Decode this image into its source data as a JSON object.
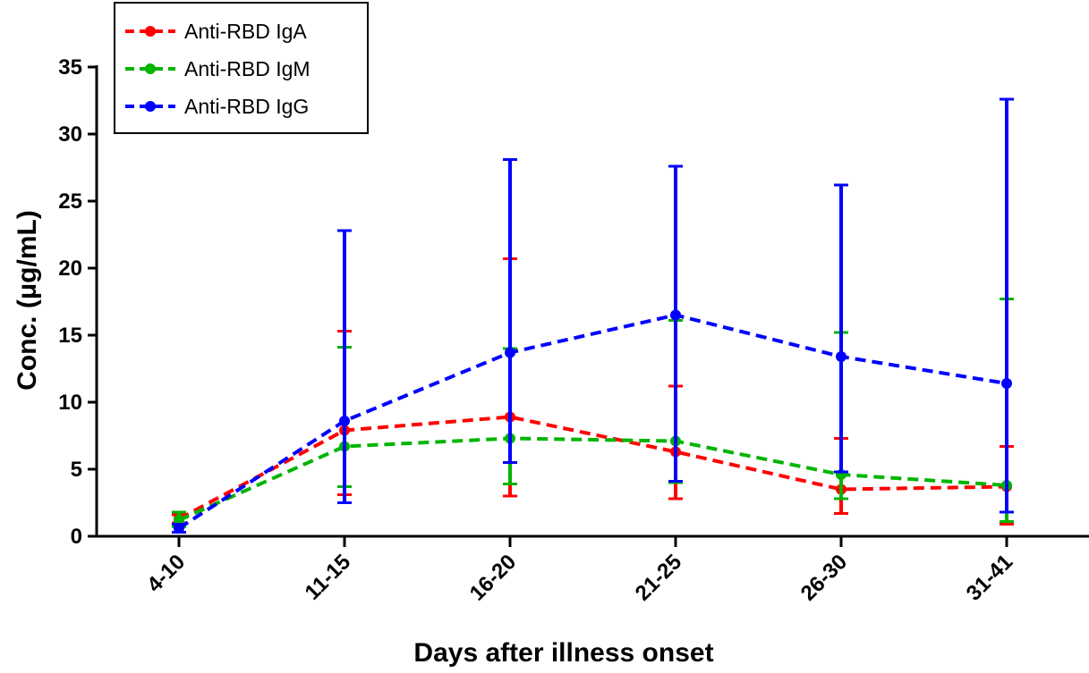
{
  "chart_data": {
    "type": "line",
    "title": "",
    "xlabel": "Days after illness onset",
    "ylabel": "Conc. (μg/mL)",
    "categories": [
      "4-10",
      "11-15",
      "16-20",
      "21-25",
      "26-30",
      "31-41"
    ],
    "ylim": [
      0,
      35
    ],
    "yticks": [
      0,
      5,
      10,
      15,
      20,
      25,
      30,
      35
    ],
    "grid": false,
    "legend_position": "top-left",
    "series": [
      {
        "name": "Anti-RBD IgA",
        "color": "#ff0000",
        "values": [
          1.3,
          7.9,
          8.9,
          6.3,
          3.5,
          3.7
        ],
        "error_low": [
          1.0,
          3.1,
          3.0,
          2.8,
          1.7,
          0.9
        ],
        "error_high": [
          1.6,
          15.3,
          20.7,
          11.2,
          7.3,
          6.7
        ]
      },
      {
        "name": "Anti-RBD IgM",
        "color": "#00b400",
        "values": [
          1.2,
          6.7,
          7.3,
          7.1,
          4.6,
          3.8
        ],
        "error_low": [
          0.7,
          3.7,
          3.9,
          4.0,
          2.8,
          1.1
        ],
        "error_high": [
          1.8,
          14.1,
          14.0,
          16.1,
          15.2,
          17.7
        ]
      },
      {
        "name": "Anti-RBD IgG",
        "color": "#0000ff",
        "values": [
          0.6,
          8.6,
          13.7,
          16.5,
          13.4,
          11.4
        ],
        "error_low": [
          0.3,
          2.5,
          5.5,
          4.1,
          4.8,
          1.8
        ],
        "error_high": [
          0.9,
          22.8,
          28.1,
          27.6,
          26.2,
          32.6
        ]
      }
    ]
  }
}
